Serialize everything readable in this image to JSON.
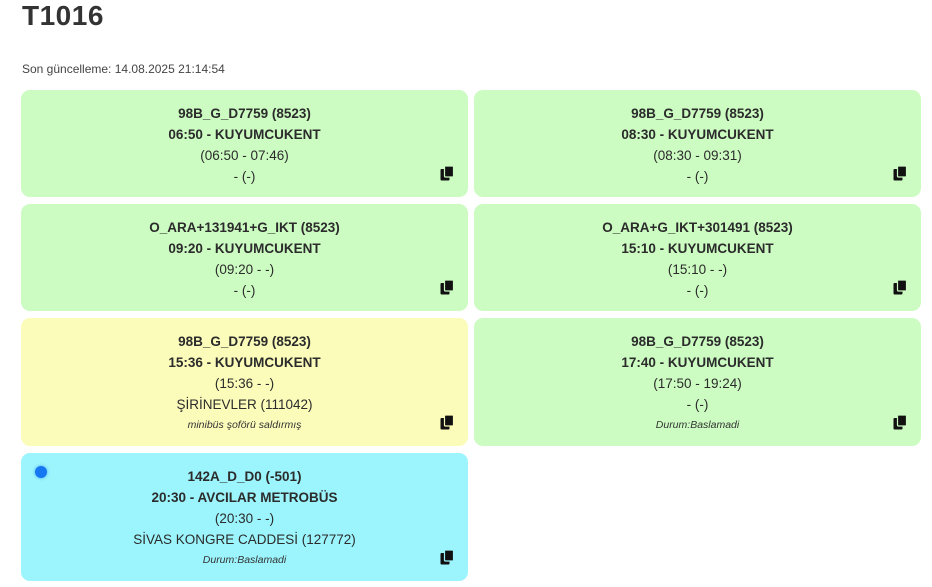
{
  "page": {
    "title": "T1016",
    "last_update": "Son güncelleme: 14.08.2025 21:14:54"
  },
  "cards": [
    {
      "route": "98B_G_D7759 (8523)",
      "departure": "06:50 - KUYUMCUKENT",
      "times": "(06:50 - 07:46)",
      "stop": "- (-)",
      "note": "",
      "color": "#ccfcc2",
      "copy_icon": "copy-icon"
    },
    {
      "route": "98B_G_D7759 (8523)",
      "departure": "08:30 - KUYUMCUKENT",
      "times": "(08:30 - 09:31)",
      "stop": "- (-)",
      "note": "",
      "color": "#ccfcc2",
      "copy_icon": "copy-icon"
    },
    {
      "route": "O_ARA+131941+G_IKT (8523)",
      "departure": "09:20 - KUYUMCUKENT",
      "times": "(09:20 - -)",
      "stop": "- (-)",
      "note": "",
      "color": "#ccfcc2",
      "copy_icon": "copy-icon"
    },
    {
      "route": "O_ARA+G_IKT+301491 (8523)",
      "departure": "15:10 - KUYUMCUKENT",
      "times": "(15:10 - -)",
      "stop": "- (-)",
      "note": "",
      "color": "#ccfcc2",
      "copy_icon": "copy-icon"
    },
    {
      "route": "98B_G_D7759 (8523)",
      "departure": "15:36 - KUYUMCUKENT",
      "times": "(15:36 - -)",
      "stop": "ŞİRİNEVLER (111042)",
      "note": "minibüs şoförü saldırmış",
      "color": "#fbfcba",
      "copy_icon": "copy-icon"
    },
    {
      "route": "98B_G_D7759 (8523)",
      "departure": "17:40 - KUYUMCUKENT",
      "times": "(17:50 - 19:24)",
      "stop": "- (-)",
      "note": "Durum:Baslamadi",
      "color": "#ccfcc2",
      "copy_icon": "copy-icon"
    },
    {
      "route": "142A_D_D0 (-501)",
      "departure": "20:30 - AVCILAR METROBÜS",
      "times": "(20:30 - -)",
      "stop": "SİVAS KONGRE CADDESİ (127772)",
      "note": "Durum:Baslamadi",
      "color": "#9cf5fd",
      "active_indicator": "blue-dot",
      "copy_icon": "copy-icon"
    }
  ]
}
